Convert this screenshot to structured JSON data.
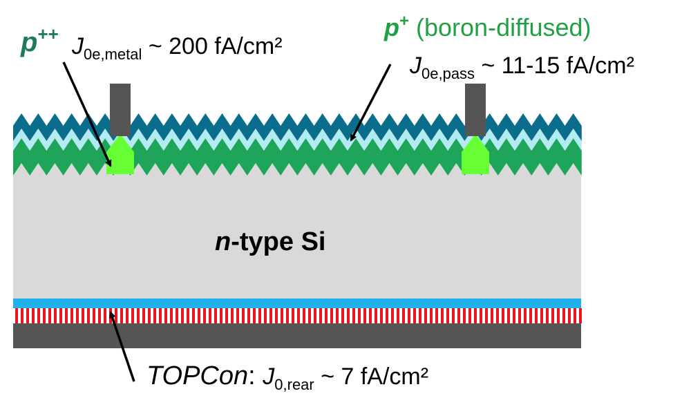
{
  "labels": {
    "p_plus_plus": {
      "symbol": "p",
      "sup": "++",
      "color": "#1e7a5e"
    },
    "j0e_metal": {
      "j": "J",
      "sub": "0e,metal",
      "value": " ~ 200 fA/cm²"
    },
    "p_plus": {
      "symbol": "p",
      "sup": "+",
      "rest": " (boron-diffused)",
      "color": "#22a047"
    },
    "j0e_pass": {
      "j": "J",
      "sub": "0e,pass",
      "value": " ~ 11-15 fA/cm²"
    },
    "bulk": {
      "italic": "n",
      "rest": "-type Si"
    },
    "topcon": {
      "name": "TOPCon",
      "colon": ": ",
      "j": "J",
      "sub": "0,rear",
      "value": " ~ 7 fA/cm²"
    }
  },
  "colors": {
    "bulk": "#d9d9d9",
    "coating_top": "#0a6d8c",
    "coating_mid": "#b2ecf2",
    "diffused_layer": "#1fa55a",
    "contact_region": "#66ff33",
    "metal": "#555555",
    "rear_oxide": "#1fb2ea",
    "rear_poly_stripes": "#e8141e",
    "rear_metal": "#555555",
    "arrow": "#000000"
  }
}
